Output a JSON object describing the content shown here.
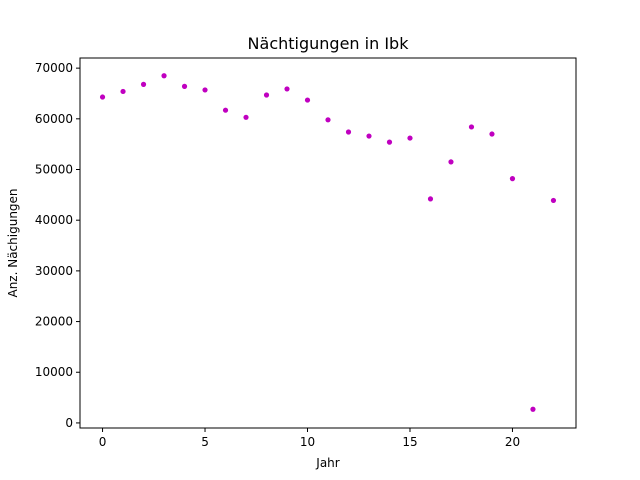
{
  "chart_data": {
    "type": "scatter",
    "title": "Nächtigungen in Ibk",
    "xlabel": "Jahr",
    "ylabel": "Anz. Nächigungen",
    "xlim": [
      -1.1,
      23.1
    ],
    "ylim": [
      -1000,
      72000
    ],
    "x_ticks": [
      0,
      5,
      10,
      15,
      20
    ],
    "x_tick_labels": [
      "0",
      "5",
      "10",
      "15",
      "20"
    ],
    "y_ticks": [
      0,
      10000,
      20000,
      30000,
      40000,
      50000,
      60000,
      70000
    ],
    "y_tick_labels": [
      "0",
      "10000",
      "20000",
      "30000",
      "40000",
      "50000",
      "60000",
      "70000"
    ],
    "grid": false,
    "series": [
      {
        "name": "Nächtigungen",
        "color": "#c000c0",
        "x": [
          0,
          1,
          2,
          3,
          4,
          5,
          6,
          7,
          8,
          9,
          10,
          11,
          12,
          13,
          14,
          15,
          16,
          17,
          18,
          19,
          20,
          21,
          22
        ],
        "y": [
          64300,
          65400,
          66800,
          68500,
          66400,
          65700,
          61700,
          60300,
          64700,
          65900,
          63700,
          59800,
          57400,
          56600,
          55400,
          56200,
          44200,
          51500,
          58400,
          57000,
          48200,
          2700,
          43900
        ]
      }
    ]
  }
}
